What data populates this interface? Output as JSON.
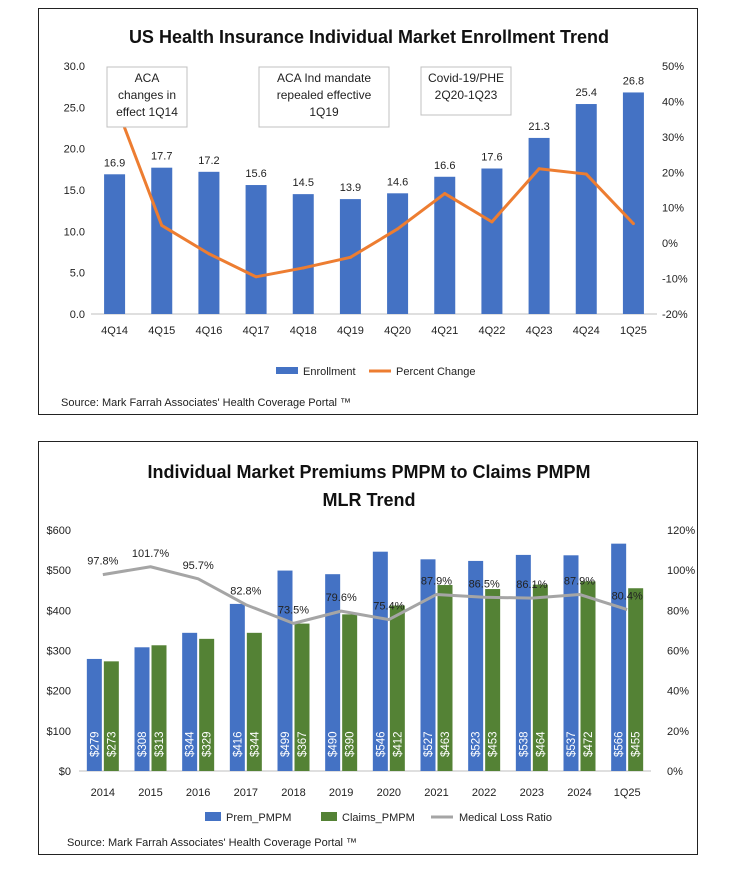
{
  "chart_data": [
    {
      "type": "bar",
      "title": "US Health Insurance Individual Market Enrollment Trend",
      "categories": [
        "4Q14",
        "4Q15",
        "4Q16",
        "4Q17",
        "4Q18",
        "4Q19",
        "4Q20",
        "4Q21",
        "4Q22",
        "4Q23",
        "4Q24",
        "1Q25"
      ],
      "series": [
        {
          "name": "Enrollment",
          "type": "bar",
          "axis": "left",
          "color": "#4472C4",
          "values": [
            16.9,
            17.7,
            17.2,
            15.6,
            14.5,
            13.9,
            14.6,
            16.6,
            17.6,
            21.3,
            25.4,
            26.8
          ],
          "labels": [
            "16.9",
            "17.7",
            "17.2",
            "15.6",
            "14.5",
            "13.9",
            "14.6",
            "16.6",
            "17.6",
            "21.3",
            "25.4",
            "26.8"
          ]
        },
        {
          "name": "Percent Change",
          "type": "line",
          "axis": "right",
          "color": "#ED7D31",
          "values": [
            40,
            5,
            -3,
            -9.5,
            -7,
            -4,
            4,
            14,
            6,
            21,
            19.5,
            5.5
          ]
        }
      ],
      "ylim": [
        0,
        30
      ],
      "yticks": [
        "0.0",
        "5.0",
        "10.0",
        "15.0",
        "20.0",
        "25.0",
        "30.0"
      ],
      "y2lim": [
        -20,
        50
      ],
      "y2ticks": [
        "-20%",
        "-10%",
        "0%",
        "10%",
        "20%",
        "30%",
        "40%",
        "50%"
      ],
      "annotations": [
        {
          "lines": [
            "ACA",
            "changes in",
            "effect 1Q14"
          ]
        },
        {
          "lines": [
            "ACA Ind mandate",
            "repealed effective",
            "1Q19"
          ]
        },
        {
          "lines": [
            "Covid-19/PHE",
            "2Q20-1Q23"
          ]
        }
      ],
      "legend": "bottom",
      "source": "Source: Mark Farrah Associates' Health Coverage Portal ™"
    },
    {
      "type": "bar",
      "title": [
        "Individual Market Premiums PMPM to Claims PMPM",
        "MLR Trend"
      ],
      "categories": [
        "2014",
        "2015",
        "2016",
        "2017",
        "2018",
        "2019",
        "2020",
        "2021",
        "2022",
        "2023",
        "2024",
        "1Q25"
      ],
      "series": [
        {
          "name": "Prem_PMPM",
          "type": "bar",
          "axis": "left",
          "color": "#4472C4",
          "values": [
            279,
            308,
            344,
            416,
            499,
            490,
            546,
            527,
            523,
            538,
            537,
            566
          ],
          "labels": [
            "$279",
            "$308",
            "$344",
            "$416",
            "$499",
            "$490",
            "$546",
            "$527",
            "$523",
            "$538",
            "$537",
            "$566"
          ]
        },
        {
          "name": "Claims_PMPM",
          "type": "bar",
          "axis": "left",
          "color": "#548235",
          "values": [
            273,
            313,
            329,
            344,
            367,
            390,
            412,
            463,
            453,
            464,
            472,
            455
          ],
          "labels": [
            "$273",
            "$313",
            "$329",
            "$344",
            "$367",
            "$390",
            "$412",
            "$463",
            "$453",
            "$464",
            "$472",
            "$455"
          ]
        },
        {
          "name": "Medical Loss Ratio",
          "type": "line",
          "axis": "right",
          "color": "#A5A5A5",
          "values": [
            97.8,
            101.7,
            95.7,
            82.8,
            73.5,
            79.6,
            75.4,
            87.9,
            86.5,
            86.1,
            87.9,
            80.4
          ],
          "labels": [
            "97.8%",
            "101.7%",
            "95.7%",
            "82.8%",
            "73.5%",
            "79.6%",
            "75.4%",
            "87.9%",
            "86.5%",
            "86.1%",
            "87.9%",
            "80.4%"
          ]
        }
      ],
      "ylim": [
        0,
        600
      ],
      "yticks": [
        "$0",
        "$100",
        "$200",
        "$300",
        "$400",
        "$500",
        "$600"
      ],
      "y2lim": [
        0,
        120
      ],
      "y2ticks": [
        "0%",
        "20%",
        "40%",
        "60%",
        "80%",
        "100%",
        "120%"
      ],
      "legend": "bottom",
      "source": "Source: Mark Farrah Associates' Health Coverage Portal ™"
    }
  ]
}
